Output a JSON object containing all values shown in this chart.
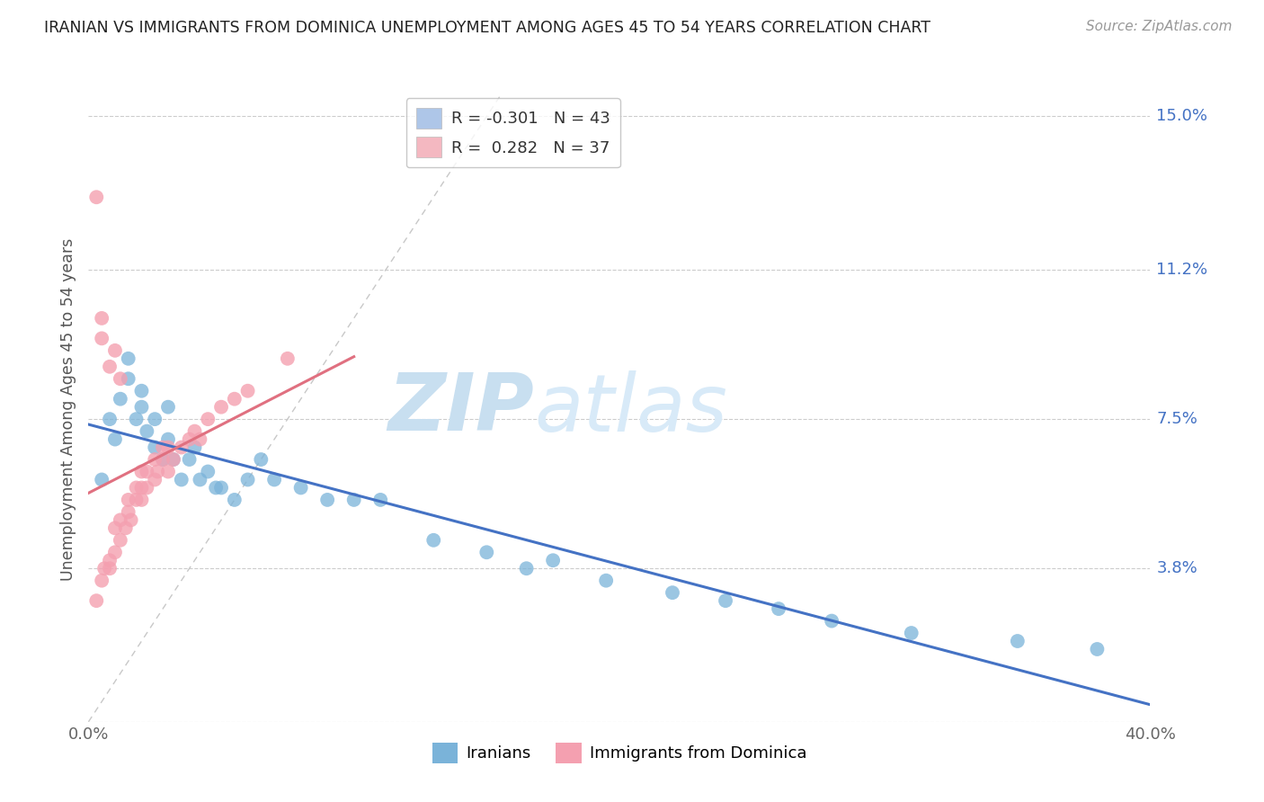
{
  "title": "IRANIAN VS IMMIGRANTS FROM DOMINICA UNEMPLOYMENT AMONG AGES 45 TO 54 YEARS CORRELATION CHART",
  "source": "Source: ZipAtlas.com",
  "ylabel": "Unemployment Among Ages 45 to 54 years",
  "ytick_vals": [
    0.0,
    0.038,
    0.075,
    0.112,
    0.15
  ],
  "ytick_labels": [
    "",
    "3.8%",
    "7.5%",
    "11.2%",
    "15.0%"
  ],
  "xlim": [
    0.0,
    0.4
  ],
  "ylim": [
    0.0,
    0.155
  ],
  "iranians_label": "Iranians",
  "dominica_label": "Immigrants from Dominica",
  "iranian_dot_color": "#7ab3d9",
  "dominica_dot_color": "#f4a0b0",
  "iranian_line_color": "#4472c4",
  "dominica_line_color": "#e07080",
  "identity_line_color": "#c8c8c8",
  "legend_iranian_patch": "#aec6e8",
  "legend_dominica_patch": "#f4b8c1",
  "legend_label_1": "R = -0.301   N = 43",
  "legend_label_2": "R =  0.282   N = 37",
  "background_color": "#ffffff",
  "watermark_zip": "ZIP",
  "watermark_atlas": "atlas",
  "iranian_x": [
    0.005,
    0.008,
    0.01,
    0.012,
    0.015,
    0.015,
    0.018,
    0.02,
    0.02,
    0.022,
    0.025,
    0.025,
    0.028,
    0.03,
    0.03,
    0.032,
    0.035,
    0.038,
    0.04,
    0.042,
    0.045,
    0.048,
    0.05,
    0.055,
    0.06,
    0.065,
    0.07,
    0.08,
    0.09,
    0.1,
    0.11,
    0.13,
    0.15,
    0.165,
    0.175,
    0.195,
    0.22,
    0.24,
    0.26,
    0.28,
    0.31,
    0.35,
    0.38
  ],
  "iranian_y": [
    0.06,
    0.075,
    0.07,
    0.08,
    0.085,
    0.09,
    0.075,
    0.078,
    0.082,
    0.072,
    0.068,
    0.075,
    0.065,
    0.07,
    0.078,
    0.065,
    0.06,
    0.065,
    0.068,
    0.06,
    0.062,
    0.058,
    0.058,
    0.055,
    0.06,
    0.065,
    0.06,
    0.058,
    0.055,
    0.055,
    0.055,
    0.045,
    0.042,
    0.038,
    0.04,
    0.035,
    0.032,
    0.03,
    0.028,
    0.025,
    0.022,
    0.02,
    0.018
  ],
  "dominica_x": [
    0.003,
    0.005,
    0.006,
    0.008,
    0.008,
    0.01,
    0.01,
    0.012,
    0.012,
    0.014,
    0.015,
    0.015,
    0.016,
    0.018,
    0.018,
    0.02,
    0.02,
    0.02,
    0.022,
    0.022,
    0.025,
    0.025,
    0.026,
    0.028,
    0.028,
    0.03,
    0.03,
    0.032,
    0.035,
    0.038,
    0.04,
    0.042,
    0.045,
    0.05,
    0.055,
    0.06,
    0.075
  ],
  "dominica_y": [
    0.03,
    0.035,
    0.038,
    0.04,
    0.038,
    0.042,
    0.048,
    0.045,
    0.05,
    0.048,
    0.052,
    0.055,
    0.05,
    0.055,
    0.058,
    0.055,
    0.058,
    0.062,
    0.058,
    0.062,
    0.06,
    0.065,
    0.062,
    0.065,
    0.068,
    0.062,
    0.068,
    0.065,
    0.068,
    0.07,
    0.072,
    0.07,
    0.075,
    0.078,
    0.08,
    0.082,
    0.09
  ],
  "dominica_outliers_x": [
    0.003,
    0.005,
    0.005,
    0.008,
    0.01,
    0.012
  ],
  "dominica_outliers_y": [
    0.13,
    0.1,
    0.095,
    0.088,
    0.092,
    0.085
  ]
}
